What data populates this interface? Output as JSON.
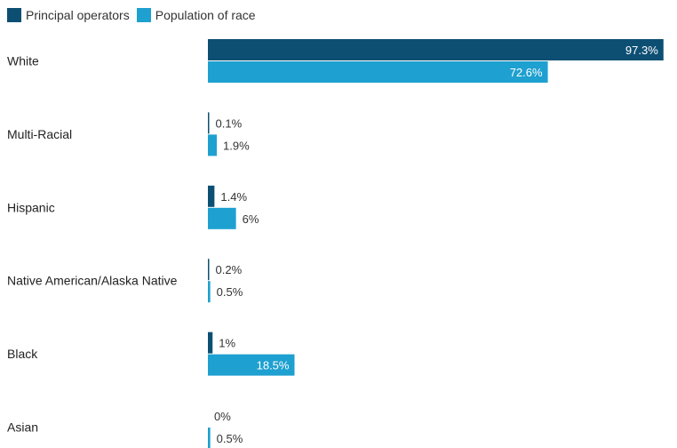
{
  "chart_data": {
    "type": "bar",
    "orientation": "horizontal",
    "categories": [
      "White",
      "Multi-Racial",
      "Hispanic",
      "Native American/Alaska Native",
      "Black",
      "Asian"
    ],
    "series": [
      {
        "name": "Principal operators",
        "values": [
          97.3,
          0.1,
          1.4,
          0.2,
          1,
          0
        ],
        "labels": [
          "97.3%",
          "0.1%",
          "1.4%",
          "0.2%",
          "1%",
          "0%"
        ]
      },
      {
        "name": "Population of race",
        "values": [
          72.6,
          1.9,
          6,
          0.5,
          18.5,
          0.5
        ],
        "labels": [
          "72.6%",
          "1.9%",
          "6%",
          "0.5%",
          "18.5%",
          "0.5%"
        ]
      }
    ],
    "xlim": [
      0,
      100
    ],
    "grid": false,
    "legend_position": "top-left"
  },
  "colors": {
    "series": [
      "#0d4f73",
      "#1ea0d0"
    ],
    "label_inside": "#ffffff",
    "label_outside": "#333333"
  }
}
